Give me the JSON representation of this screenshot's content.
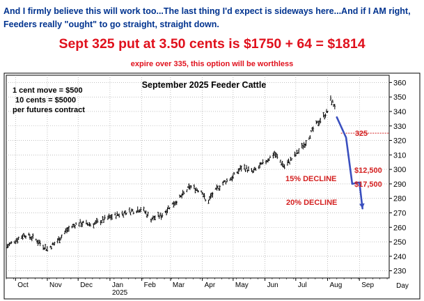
{
  "header": {
    "intro": "And I firmly believe this will work too...The last thing I'd expect is sideways here...And if I AM right, Feeders really \"ought\" to go straight, straight down.",
    "headline": "Sept 325 put at 3.50 cents is $1750 + 64 = $1814",
    "subnote": "expire over 335, this option will be worthless"
  },
  "chart_data": {
    "type": "bar",
    "style": "ohlc-price",
    "title": "September 2025 Feeder Cattle",
    "notes": [
      "1 cent move = $500",
      "10 cents = $5000",
      "per futures contract"
    ],
    "xlabel": "Day",
    "x_ticks": [
      "Oct",
      "Nov",
      "Dec",
      "Jan",
      "Feb",
      "Mar",
      "Apr",
      "May",
      "Jun",
      "Jul",
      "Aug",
      "Sep"
    ],
    "x_year_label": "2025",
    "ylim": [
      225,
      365
    ],
    "y_ticks": [
      230,
      240,
      250,
      260,
      270,
      280,
      290,
      300,
      310,
      320,
      330,
      340,
      350,
      360
    ],
    "price_path": {
      "x": [
        "2024-09-23",
        "2024-10-01",
        "2024-10-10",
        "2024-10-20",
        "2024-11-01",
        "2024-11-10",
        "2024-11-20",
        "2024-12-01",
        "2024-12-15",
        "2025-01-01",
        "2025-01-15",
        "2025-02-01",
        "2025-02-10",
        "2025-02-20",
        "2025-03-01",
        "2025-03-10",
        "2025-03-20",
        "2025-04-01",
        "2025-04-05",
        "2025-04-10",
        "2025-04-20",
        "2025-05-01",
        "2025-05-10",
        "2025-05-20",
        "2025-06-01",
        "2025-06-10",
        "2025-06-20",
        "2025-07-01",
        "2025-07-10",
        "2025-07-20",
        "2025-08-01",
        "2025-08-04",
        "2025-08-08"
      ],
      "y": [
        247,
        251,
        255,
        252,
        245,
        250,
        258,
        263,
        262,
        267,
        270,
        273,
        266,
        268,
        275,
        280,
        288,
        285,
        276,
        282,
        290,
        295,
        302,
        298,
        305,
        311,
        302,
        310,
        318,
        330,
        340,
        348,
        344
      ]
    },
    "projection": {
      "x": [
        "2025-08-10",
        "2025-08-19",
        "2025-08-25",
        "2025-09-01",
        "2025-09-04"
      ],
      "y": [
        336,
        322,
        290,
        291,
        273
      ]
    },
    "annotations": {
      "strike_label": "325",
      "strike_value": 325,
      "decline_15": "15% DECLINE",
      "decline_20": "20% DECLINE",
      "gain_15": "$12,500",
      "gain_20": "$17,500"
    },
    "colors": {
      "price": "#000000",
      "projection": "#3a4fbf",
      "annotation": "#d42020",
      "grid": "#9a9a9a"
    }
  }
}
